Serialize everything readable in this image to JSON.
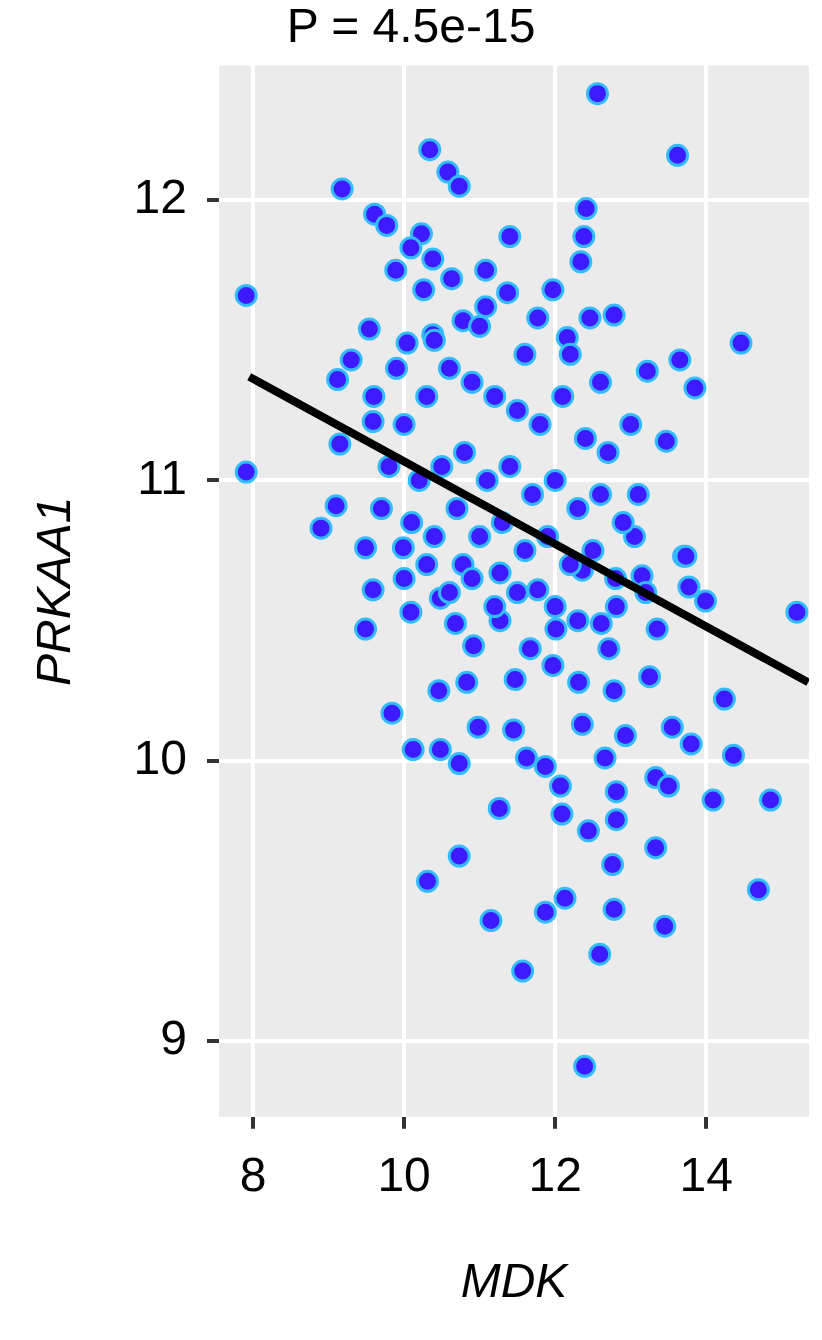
{
  "chart_data": {
    "type": "scatter",
    "title": "P = 4.5e-15",
    "xlabel": "MDK",
    "ylabel": "PRKAA1",
    "xlim": [
      7.55,
      15.36
    ],
    "ylim": [
      8.73,
      12.48
    ],
    "xticks": [
      8,
      10,
      12,
      14
    ],
    "yticks": [
      9,
      10,
      11,
      12
    ],
    "grid": true,
    "marker": "circle",
    "series": [
      {
        "color": "#3d1aff",
        "x": [
          12.56,
          10.34,
          10.58,
          10.73,
          13.62,
          9.18,
          9.61,
          9.77,
          12.41,
          12.38,
          12.34,
          11.4,
          7.91,
          7.91,
          14.46,
          10.23,
          10.09,
          10.38,
          9.89,
          11.08,
          10.63,
          10.26,
          11.37,
          11.97,
          11.08,
          11.77,
          12.46,
          12.78,
          9.54,
          10.78,
          12.16,
          10.04,
          10.38,
          13.65,
          13.85,
          13.22,
          9.3,
          9.12,
          9.59,
          9.15,
          13.47,
          9.1,
          8.9,
          13.7,
          13.05,
          9.49,
          9.59,
          9.49,
          10.09,
          13.73,
          13.77,
          13.99,
          13.35,
          15.2,
          14.24,
          13.8,
          14.36,
          14.09,
          14.85,
          14.69,
          9.84,
          10.12,
          10.48,
          10.73,
          10.98,
          11.45,
          11.62,
          11.87,
          12.07,
          11.26,
          12.09,
          12.44,
          12.81,
          12.81,
          12.66,
          12.93,
          12.36,
          13.33,
          13.5,
          13.55,
          13.33,
          12.76,
          10.73,
          10.31,
          11.15,
          11.87,
          12.13,
          12.78,
          13.45,
          12.59,
          11.57,
          12.39,
          10.46,
          10.83,
          11.47,
          11.97,
          12.31,
          12.78,
          13.25,
          12.71,
          11.67,
          10.92,
          10.68,
          11.27,
          12.01,
          12.61,
          13.15,
          12.81,
          11.27,
          10.48,
          10.78,
          9.99,
          11.77,
          12.36,
          10.0,
          10.3,
          10.6,
          10.9,
          11.2,
          11.5,
          11.8,
          12.1,
          12.4,
          12.7,
          13.0,
          10.2,
          10.5,
          10.8,
          11.1,
          11.4,
          11.7,
          12.0,
          12.3,
          12.6,
          12.9,
          10.1,
          10.4,
          10.7,
          11.0,
          11.3,
          11.6,
          11.9,
          12.2,
          12.5,
          12.8,
          9.8,
          9.7,
          10.0,
          10.3,
          10.6,
          10.9,
          11.2,
          11.5,
          12.0,
          12.3,
          9.9,
          10.4,
          11.0,
          11.6,
          12.2,
          12.6,
          13.1,
          13.2,
          9.6
        ],
        "values": [
          12.38,
          12.18,
          12.1,
          12.05,
          12.16,
          12.04,
          11.95,
          11.91,
          11.97,
          11.87,
          11.78,
          11.87,
          11.66,
          11.03,
          11.49,
          11.88,
          11.83,
          11.79,
          11.75,
          11.75,
          11.72,
          11.68,
          11.67,
          11.68,
          11.62,
          11.58,
          11.58,
          11.59,
          11.54,
          11.57,
          11.51,
          11.49,
          11.52,
          11.43,
          11.33,
          11.39,
          11.43,
          11.36,
          11.21,
          11.13,
          11.14,
          10.91,
          10.83,
          10.73,
          10.8,
          10.76,
          10.61,
          10.47,
          10.53,
          10.73,
          10.62,
          10.57,
          10.47,
          10.53,
          10.22,
          10.06,
          10.02,
          9.86,
          9.86,
          9.54,
          10.17,
          10.04,
          10.04,
          9.99,
          10.12,
          10.11,
          10.01,
          9.98,
          9.91,
          9.83,
          9.81,
          9.75,
          9.79,
          9.89,
          10.01,
          10.09,
          10.13,
          9.94,
          9.91,
          10.12,
          9.69,
          9.63,
          9.66,
          9.57,
          9.43,
          9.46,
          9.51,
          9.47,
          9.41,
          9.31,
          9.25,
          8.91,
          10.25,
          10.28,
          10.29,
          10.34,
          10.28,
          10.25,
          10.3,
          10.4,
          10.4,
          10.41,
          10.49,
          10.5,
          10.47,
          10.49,
          10.66,
          10.55,
          10.67,
          10.58,
          10.7,
          10.76,
          10.61,
          10.68,
          11.2,
          11.3,
          11.4,
          11.35,
          11.3,
          11.25,
          11.2,
          11.3,
          11.15,
          11.1,
          11.2,
          11.0,
          11.05,
          11.1,
          11.0,
          11.05,
          10.95,
          11.0,
          10.9,
          10.95,
          10.85,
          10.85,
          10.8,
          10.9,
          10.8,
          10.85,
          10.75,
          10.8,
          10.7,
          10.75,
          10.65,
          11.05,
          10.9,
          10.65,
          10.7,
          10.6,
          10.65,
          10.55,
          10.6,
          10.55,
          10.5,
          11.4,
          11.5,
          11.55,
          11.45,
          11.45,
          11.35,
          10.95,
          10.6,
          11.3
        ]
      },
      {
        "type": "line",
        "color": "#000000",
        "marker": "none",
        "x": [
          7.95,
          15.35
        ],
        "values": [
          11.37,
          10.28
        ]
      }
    ]
  }
}
